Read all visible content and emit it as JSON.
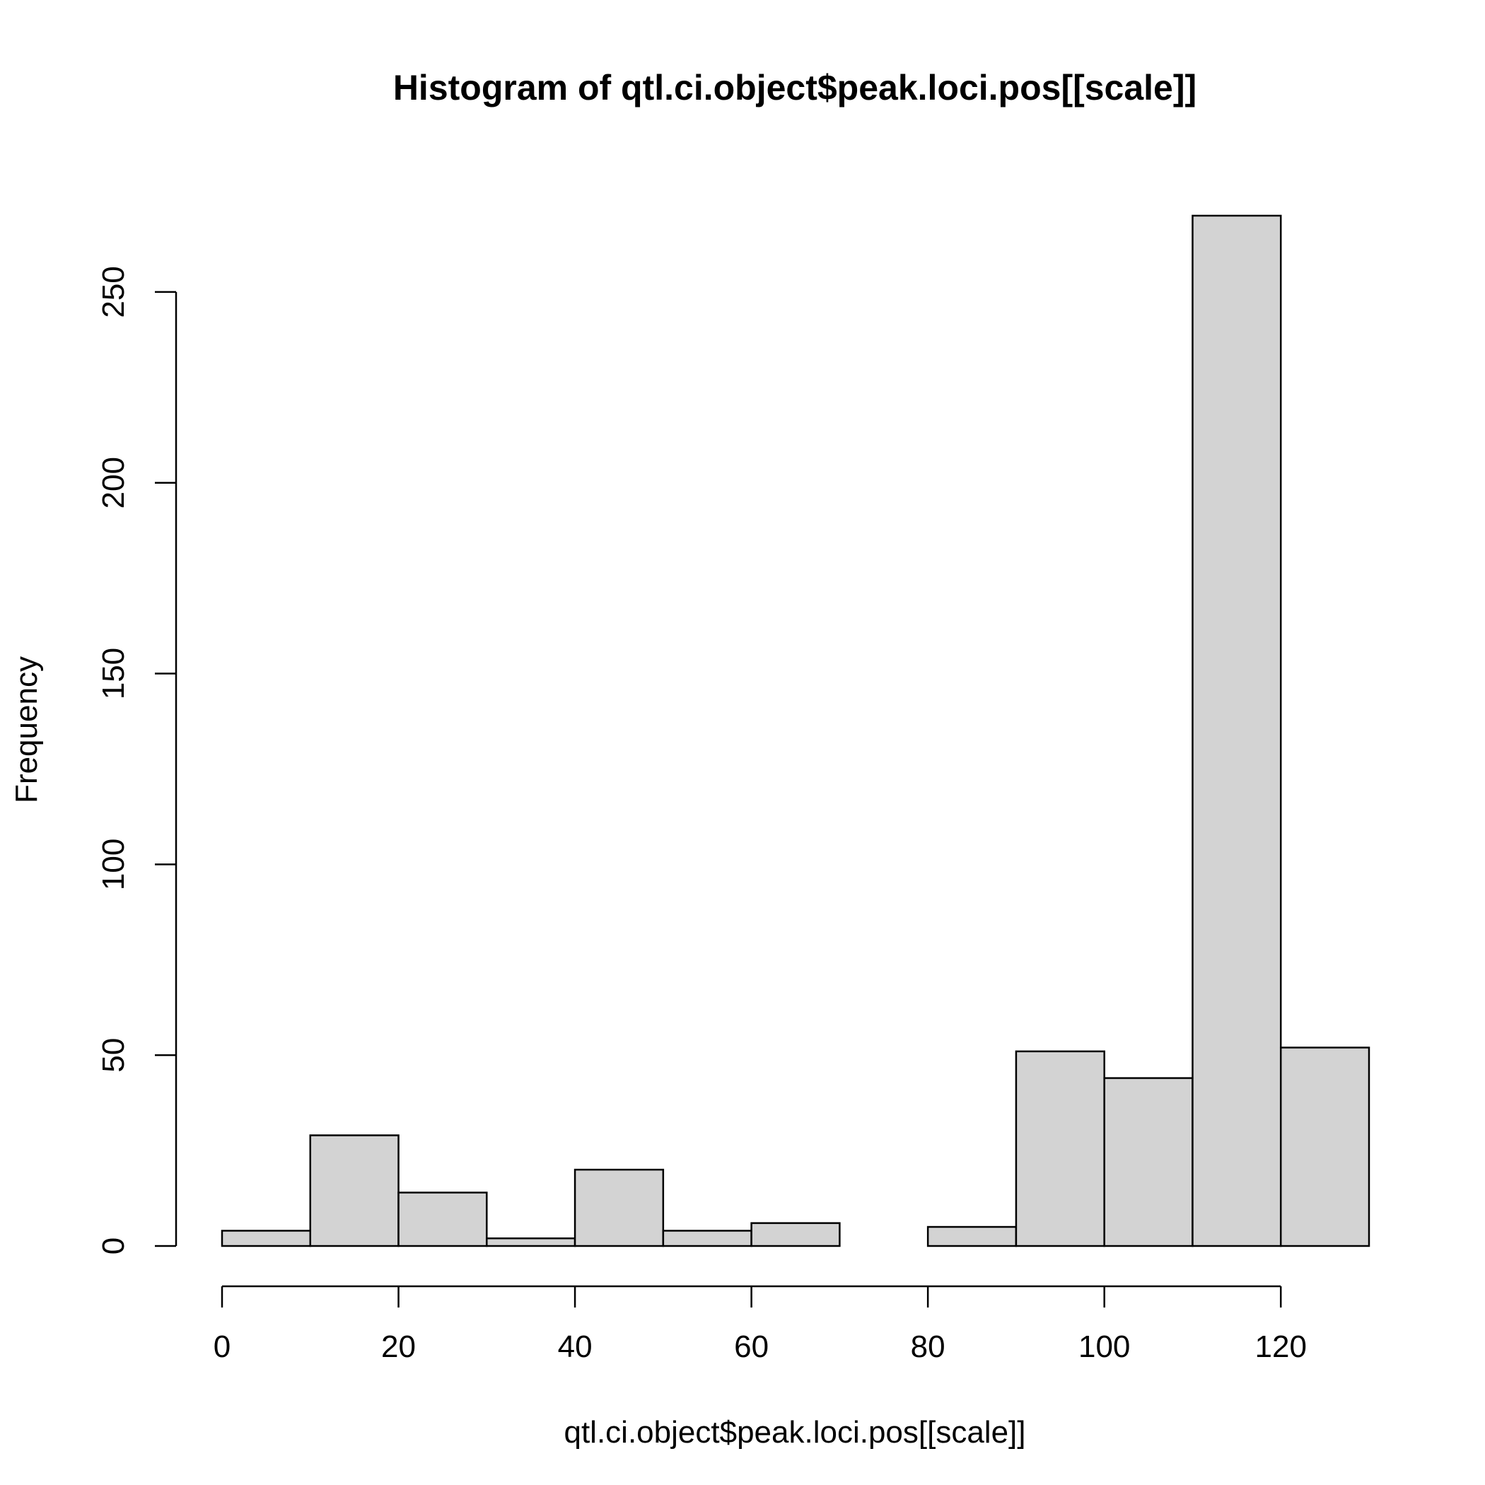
{
  "chart_data": {
    "type": "bar",
    "title": "Histogram of qtl.ci.object$peak.loci.pos[[scale]]",
    "xlabel": "qtl.ci.object$peak.loci.pos[[scale]]",
    "ylabel": "Frequency",
    "bins": [
      {
        "start": 0,
        "end": 10,
        "count": 4
      },
      {
        "start": 10,
        "end": 20,
        "count": 29
      },
      {
        "start": 20,
        "end": 30,
        "count": 14
      },
      {
        "start": 30,
        "end": 40,
        "count": 2
      },
      {
        "start": 40,
        "end": 50,
        "count": 20
      },
      {
        "start": 50,
        "end": 60,
        "count": 4
      },
      {
        "start": 60,
        "end": 70,
        "count": 6
      },
      {
        "start": 70,
        "end": 80,
        "count": 0
      },
      {
        "start": 80,
        "end": 90,
        "count": 5
      },
      {
        "start": 90,
        "end": 100,
        "count": 51
      },
      {
        "start": 100,
        "end": 110,
        "count": 44
      },
      {
        "start": 110,
        "end": 120,
        "count": 270
      },
      {
        "start": 120,
        "end": 130,
        "count": 52
      }
    ],
    "x_ticks": [
      0,
      20,
      40,
      60,
      80,
      100,
      120
    ],
    "x_tick_labels": [
      "0",
      "20",
      "40",
      "60",
      "80",
      "100",
      "120"
    ],
    "y_ticks": [
      0,
      50,
      100,
      150,
      200,
      250
    ],
    "y_tick_labels": [
      "0",
      "50",
      "100",
      "150",
      "200",
      "250"
    ],
    "xlim": [
      0,
      130
    ],
    "ylim": [
      0,
      270
    ],
    "grid": false,
    "bar_fill": "#d3d3d3",
    "bar_stroke": "#000000"
  }
}
